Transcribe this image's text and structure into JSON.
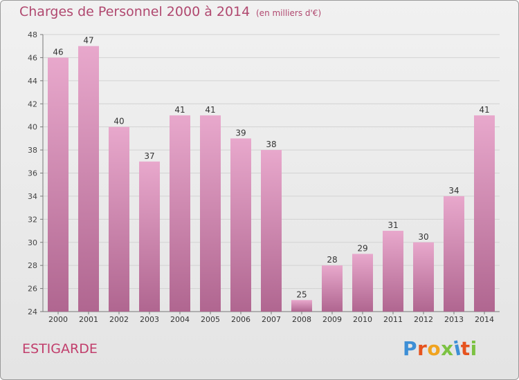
{
  "header": {
    "title": "Charges de Personnel 2000 à 2014",
    "subtitle": "(en milliers d'€)"
  },
  "footer": {
    "town": "ESTIGARDE",
    "logo": "Proxiti"
  },
  "colors": {
    "bar_top": "#e8a8cc",
    "bar_bottom": "#b06690",
    "title": "#b0486f",
    "logo": [
      "#3d8fd6",
      "#e6531e",
      "#f0a31f",
      "#7cc242",
      "#3d8fd6",
      "#e6531e",
      "#7cc242"
    ]
  },
  "chart_data": {
    "type": "bar",
    "categories": [
      "2000",
      "2001",
      "2002",
      "2003",
      "2004",
      "2005",
      "2006",
      "2007",
      "2008",
      "2009",
      "2010",
      "2011",
      "2012",
      "2013",
      "2014"
    ],
    "values": [
      46,
      47,
      40,
      37,
      41,
      41,
      39,
      38,
      25,
      28,
      29,
      31,
      30,
      34,
      41
    ],
    "ylim": [
      24,
      48
    ],
    "yticks": [
      24,
      26,
      28,
      30,
      32,
      34,
      36,
      38,
      40,
      42,
      44,
      46,
      48
    ],
    "grid": true
  }
}
